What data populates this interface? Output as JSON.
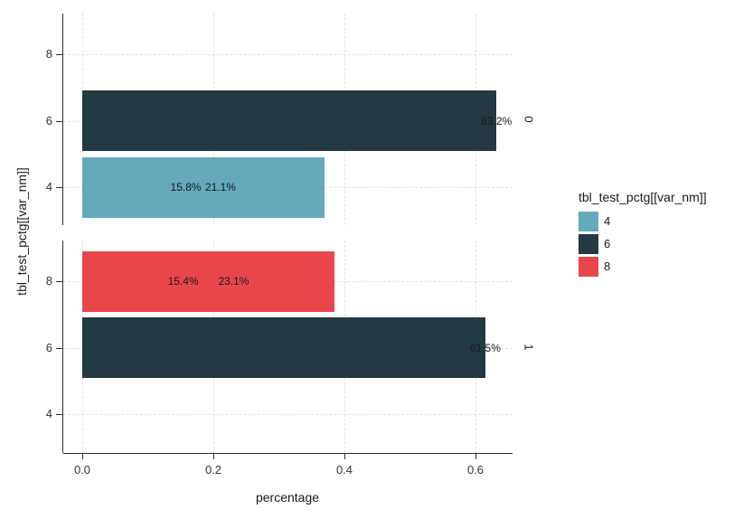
{
  "chart_data": {
    "type": "bar",
    "orientation": "horizontal",
    "stacked": true,
    "xlabel": "percentage",
    "ylabel": "tbl_test_pctg[[var_nm]]",
    "x_ticks": [
      0.0,
      0.2,
      0.4,
      0.6
    ],
    "x_tick_labels": [
      "0.0",
      "0.2",
      "0.4",
      "0.6"
    ],
    "xlim": [
      -0.03,
      0.66
    ],
    "y_categories": [
      "8",
      "6",
      "4"
    ],
    "grid": "major-dashed",
    "legend_position": "right",
    "colors": {
      "4": "#64a9bc",
      "6": "#233943",
      "8": "#e9464c"
    },
    "facets": [
      {
        "label": "0",
        "bars": [
          {
            "category": "6",
            "fill": "6",
            "segments": [
              {
                "value": 0.632,
                "label": "63.2%"
              }
            ],
            "total": 0.632
          },
          {
            "category": "4",
            "fill": "4",
            "segments": [
              {
                "value": 0.158,
                "label": "15.8%"
              },
              {
                "value": 0.211,
                "label": "21.1%"
              }
            ],
            "total": 0.369
          }
        ]
      },
      {
        "label": "1",
        "bars": [
          {
            "category": "8",
            "fill": "8",
            "segments": [
              {
                "value": 0.154,
                "label": "15.4%"
              },
              {
                "value": 0.231,
                "label": "23.1%"
              }
            ],
            "total": 0.385
          },
          {
            "category": "6",
            "fill": "6",
            "segments": [
              {
                "value": 0.615,
                "label": "61.5%"
              }
            ],
            "total": 0.615
          }
        ]
      }
    ],
    "legend": {
      "title": "tbl_test_pctg[[var_nm]]",
      "items": [
        {
          "label": "4",
          "color": "#64a9bc"
        },
        {
          "label": "6",
          "color": "#233943"
        },
        {
          "label": "8",
          "color": "#e9464c"
        }
      ]
    }
  }
}
